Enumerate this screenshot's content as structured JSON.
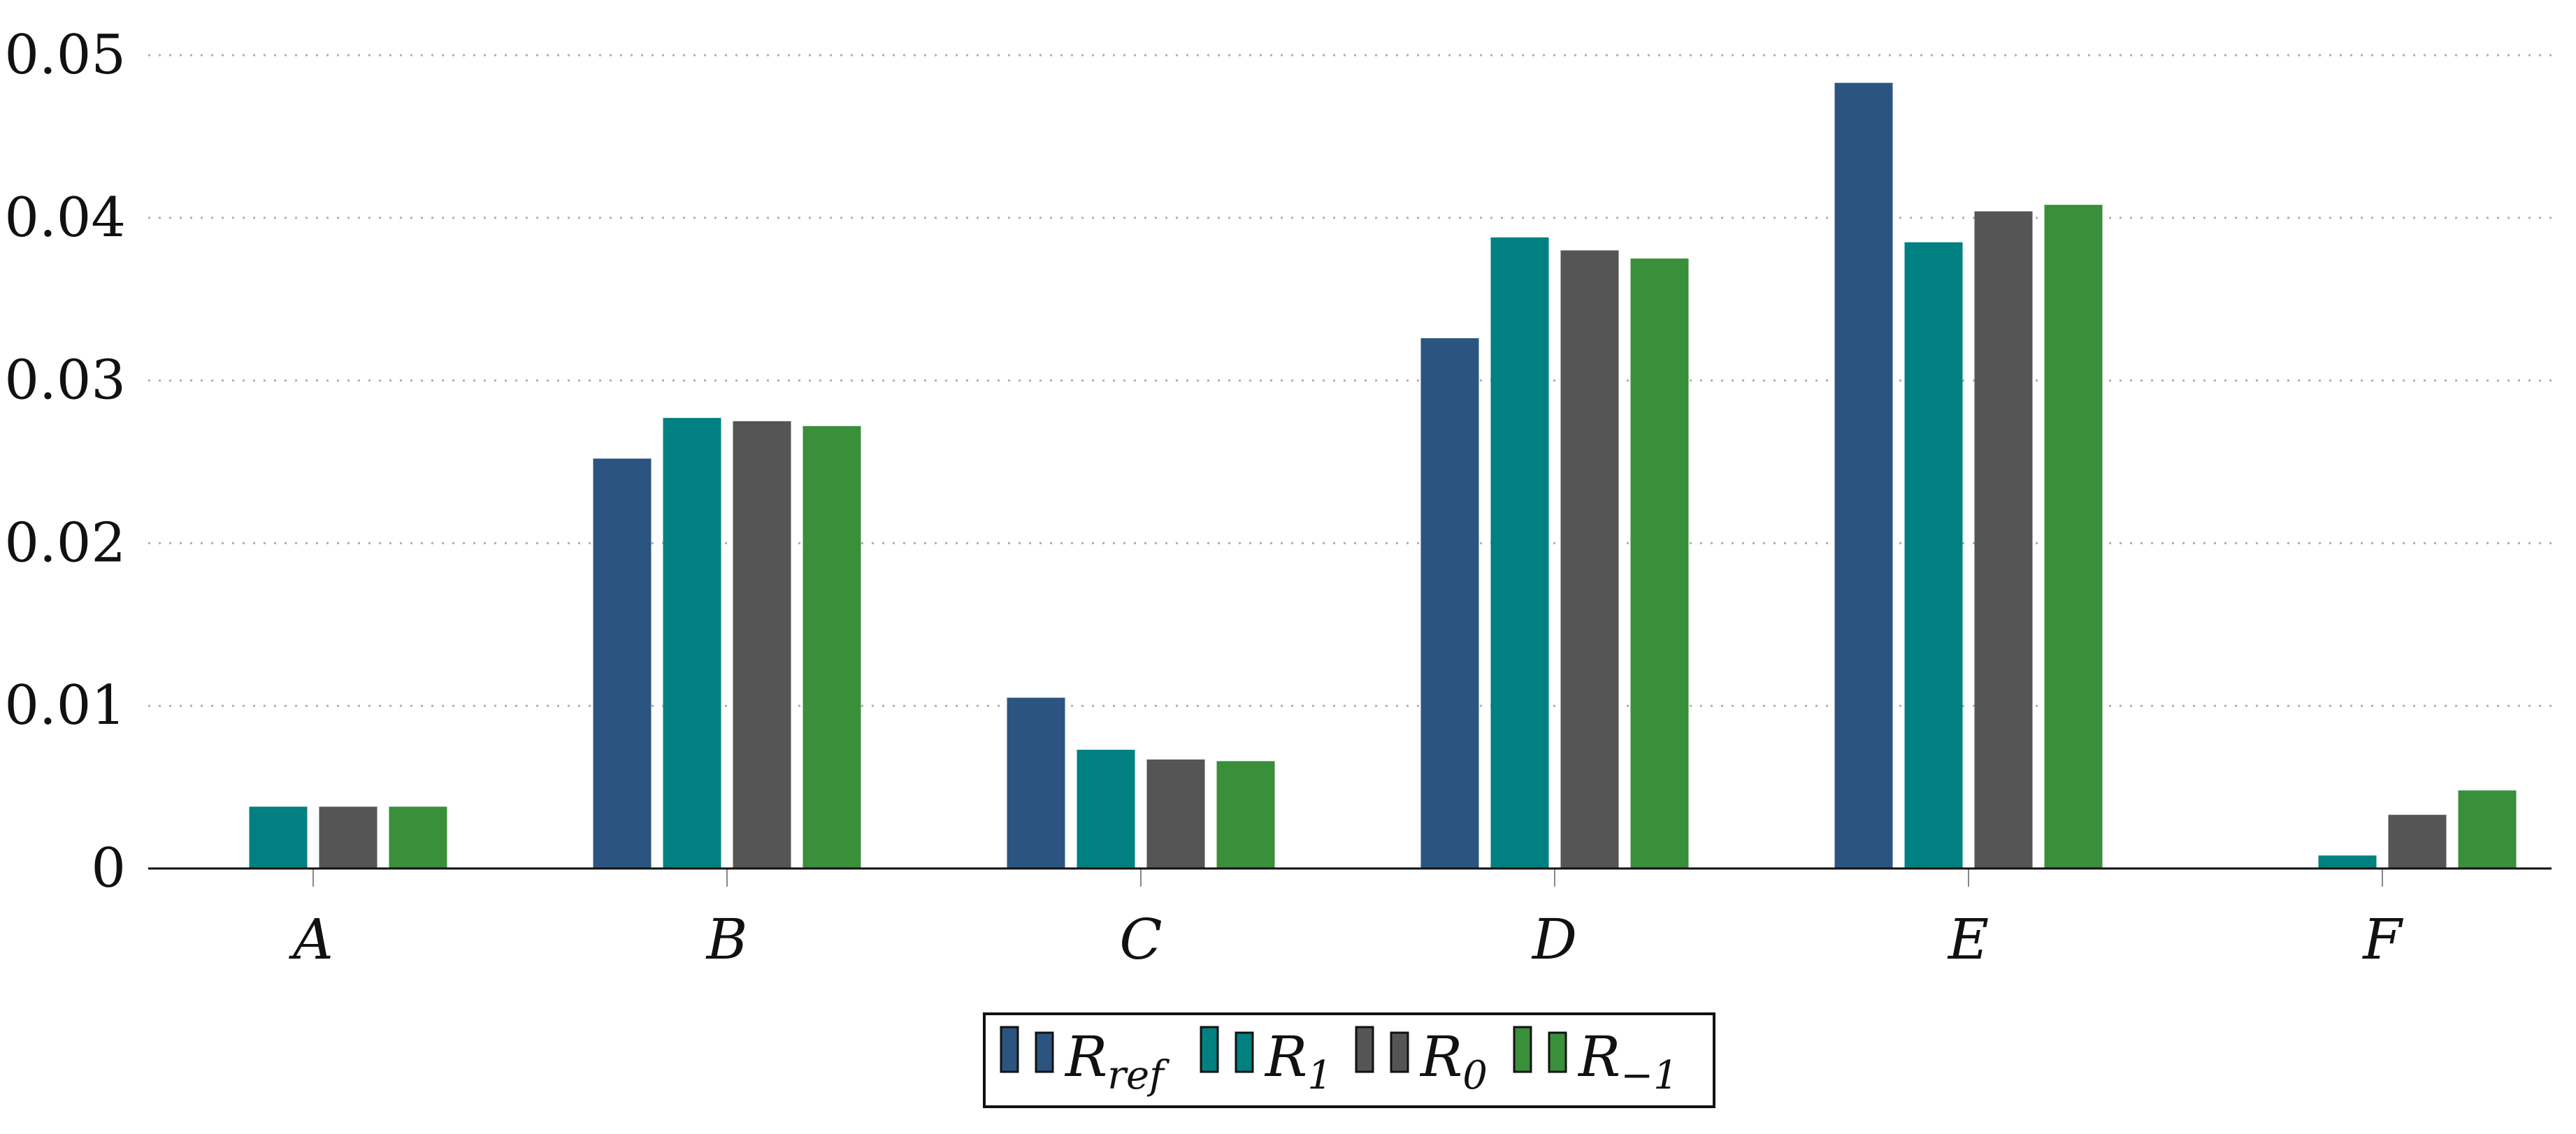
{
  "chart_data": {
    "type": "bar",
    "title": "",
    "xlabel": "",
    "ylabel": "",
    "ylim": [
      0,
      0.05
    ],
    "yticks": [
      "0",
      "0.01",
      "0.02",
      "0.03",
      "0.04",
      "0.05"
    ],
    "grid": "horizontal-dotted",
    "legend_position": "bottom-center",
    "categories": [
      "A",
      "B",
      "C",
      "D",
      "E",
      "F"
    ],
    "series": [
      {
        "name": "R_ref",
        "label_main": "R",
        "label_sub": "ref",
        "color": "#2b5580",
        "values": [
          0,
          0.0252,
          0.0105,
          0.0326,
          0.0483,
          0
        ]
      },
      {
        "name": "R_1",
        "label_main": "R",
        "label_sub": "1",
        "color": "#008080",
        "values": [
          0.0038,
          0.0277,
          0.0073,
          0.0388,
          0.0385,
          0.0008
        ]
      },
      {
        "name": "R_0",
        "label_main": "R",
        "label_sub": "0",
        "color": "#555555",
        "values": [
          0.0038,
          0.0275,
          0.0067,
          0.038,
          0.0404,
          0.0033
        ]
      },
      {
        "name": "R_-1",
        "label_main": "R",
        "label_sub": "−1",
        "color": "#3a8f3a",
        "values": [
          0.0038,
          0.0272,
          0.0066,
          0.0375,
          0.0408,
          0.0048
        ]
      }
    ]
  }
}
